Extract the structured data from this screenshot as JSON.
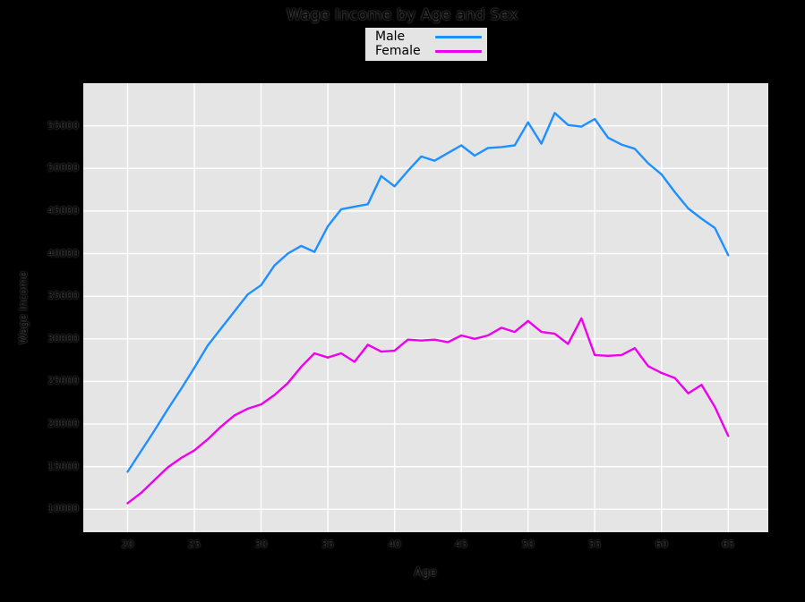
{
  "title": "Wage Income by Age and Sex",
  "legend": {
    "entries": [
      {
        "label": "Male",
        "color": "#1E90FF"
      },
      {
        "label": "Female",
        "color": "#EE00EE"
      }
    ]
  },
  "chart_data": {
    "type": "line",
    "title": "Wage Income by Age and Sex",
    "xlabel": "Age",
    "ylabel": "Wage Income",
    "figure_bg": "#000000",
    "plot_bg": "#e5e5e5",
    "grid_color": "#ffffff",
    "grid": true,
    "legend_position": "top-center",
    "xlim": [
      16.68,
      68.0
    ],
    "ylim": [
      7300,
      60000
    ],
    "x_ticks": [
      20,
      25,
      30,
      35,
      40,
      45,
      50,
      55,
      60,
      65
    ],
    "x_tick_labels": [
      "20",
      "25",
      "30",
      "35",
      "40",
      "45",
      "50",
      "55",
      "60",
      "65"
    ],
    "y_ticks": [
      10000,
      15000,
      20000,
      25000,
      30000,
      35000,
      40000,
      45000,
      50000,
      55000
    ],
    "y_tick_labels": [
      "10000",
      "15000",
      "20000",
      "25000",
      "30000",
      "35000",
      "40000",
      "45000",
      "50000",
      "55000"
    ],
    "x": [
      20,
      21,
      22,
      23,
      24,
      25,
      26,
      27,
      28,
      29,
      30,
      31,
      32,
      33,
      34,
      35,
      36,
      37,
      38,
      39,
      40,
      41,
      42,
      43,
      44,
      45,
      46,
      47,
      48,
      49,
      50,
      51,
      52,
      53,
      54,
      55,
      56,
      57,
      58,
      59,
      60,
      61,
      62,
      63,
      64,
      65
    ],
    "series": [
      {
        "name": "Male",
        "color": "#1E90FF",
        "values": [
          14400,
          16800,
          19200,
          21700,
          24100,
          26600,
          29200,
          31200,
          33200,
          35200,
          36300,
          38600,
          40000,
          40900,
          40200,
          43200,
          45200,
          45500,
          45800,
          49100,
          47900,
          49700,
          51400,
          50900,
          51800,
          52700,
          51500,
          52400,
          52500,
          52700,
          55400,
          52900,
          56500,
          55100,
          54900,
          55800,
          53600,
          52800,
          52300,
          50600,
          49300,
          47200,
          45300,
          44100,
          43000,
          39800
        ]
      },
      {
        "name": "Female",
        "color": "#EE00EE",
        "values": [
          10700,
          11900,
          13400,
          14900,
          16000,
          16900,
          18200,
          19700,
          21000,
          21800,
          22300,
          23400,
          24800,
          26700,
          28300,
          27800,
          28300,
          27300,
          29300,
          28500,
          28600,
          29900,
          29800,
          29900,
          29600,
          30400,
          30000,
          30400,
          31300,
          30800,
          32100,
          30800,
          30600,
          29400,
          32400,
          28100,
          28000,
          28100,
          28900,
          26800,
          26000,
          25400,
          23600,
          24600,
          22000,
          18600
        ]
      }
    ]
  }
}
